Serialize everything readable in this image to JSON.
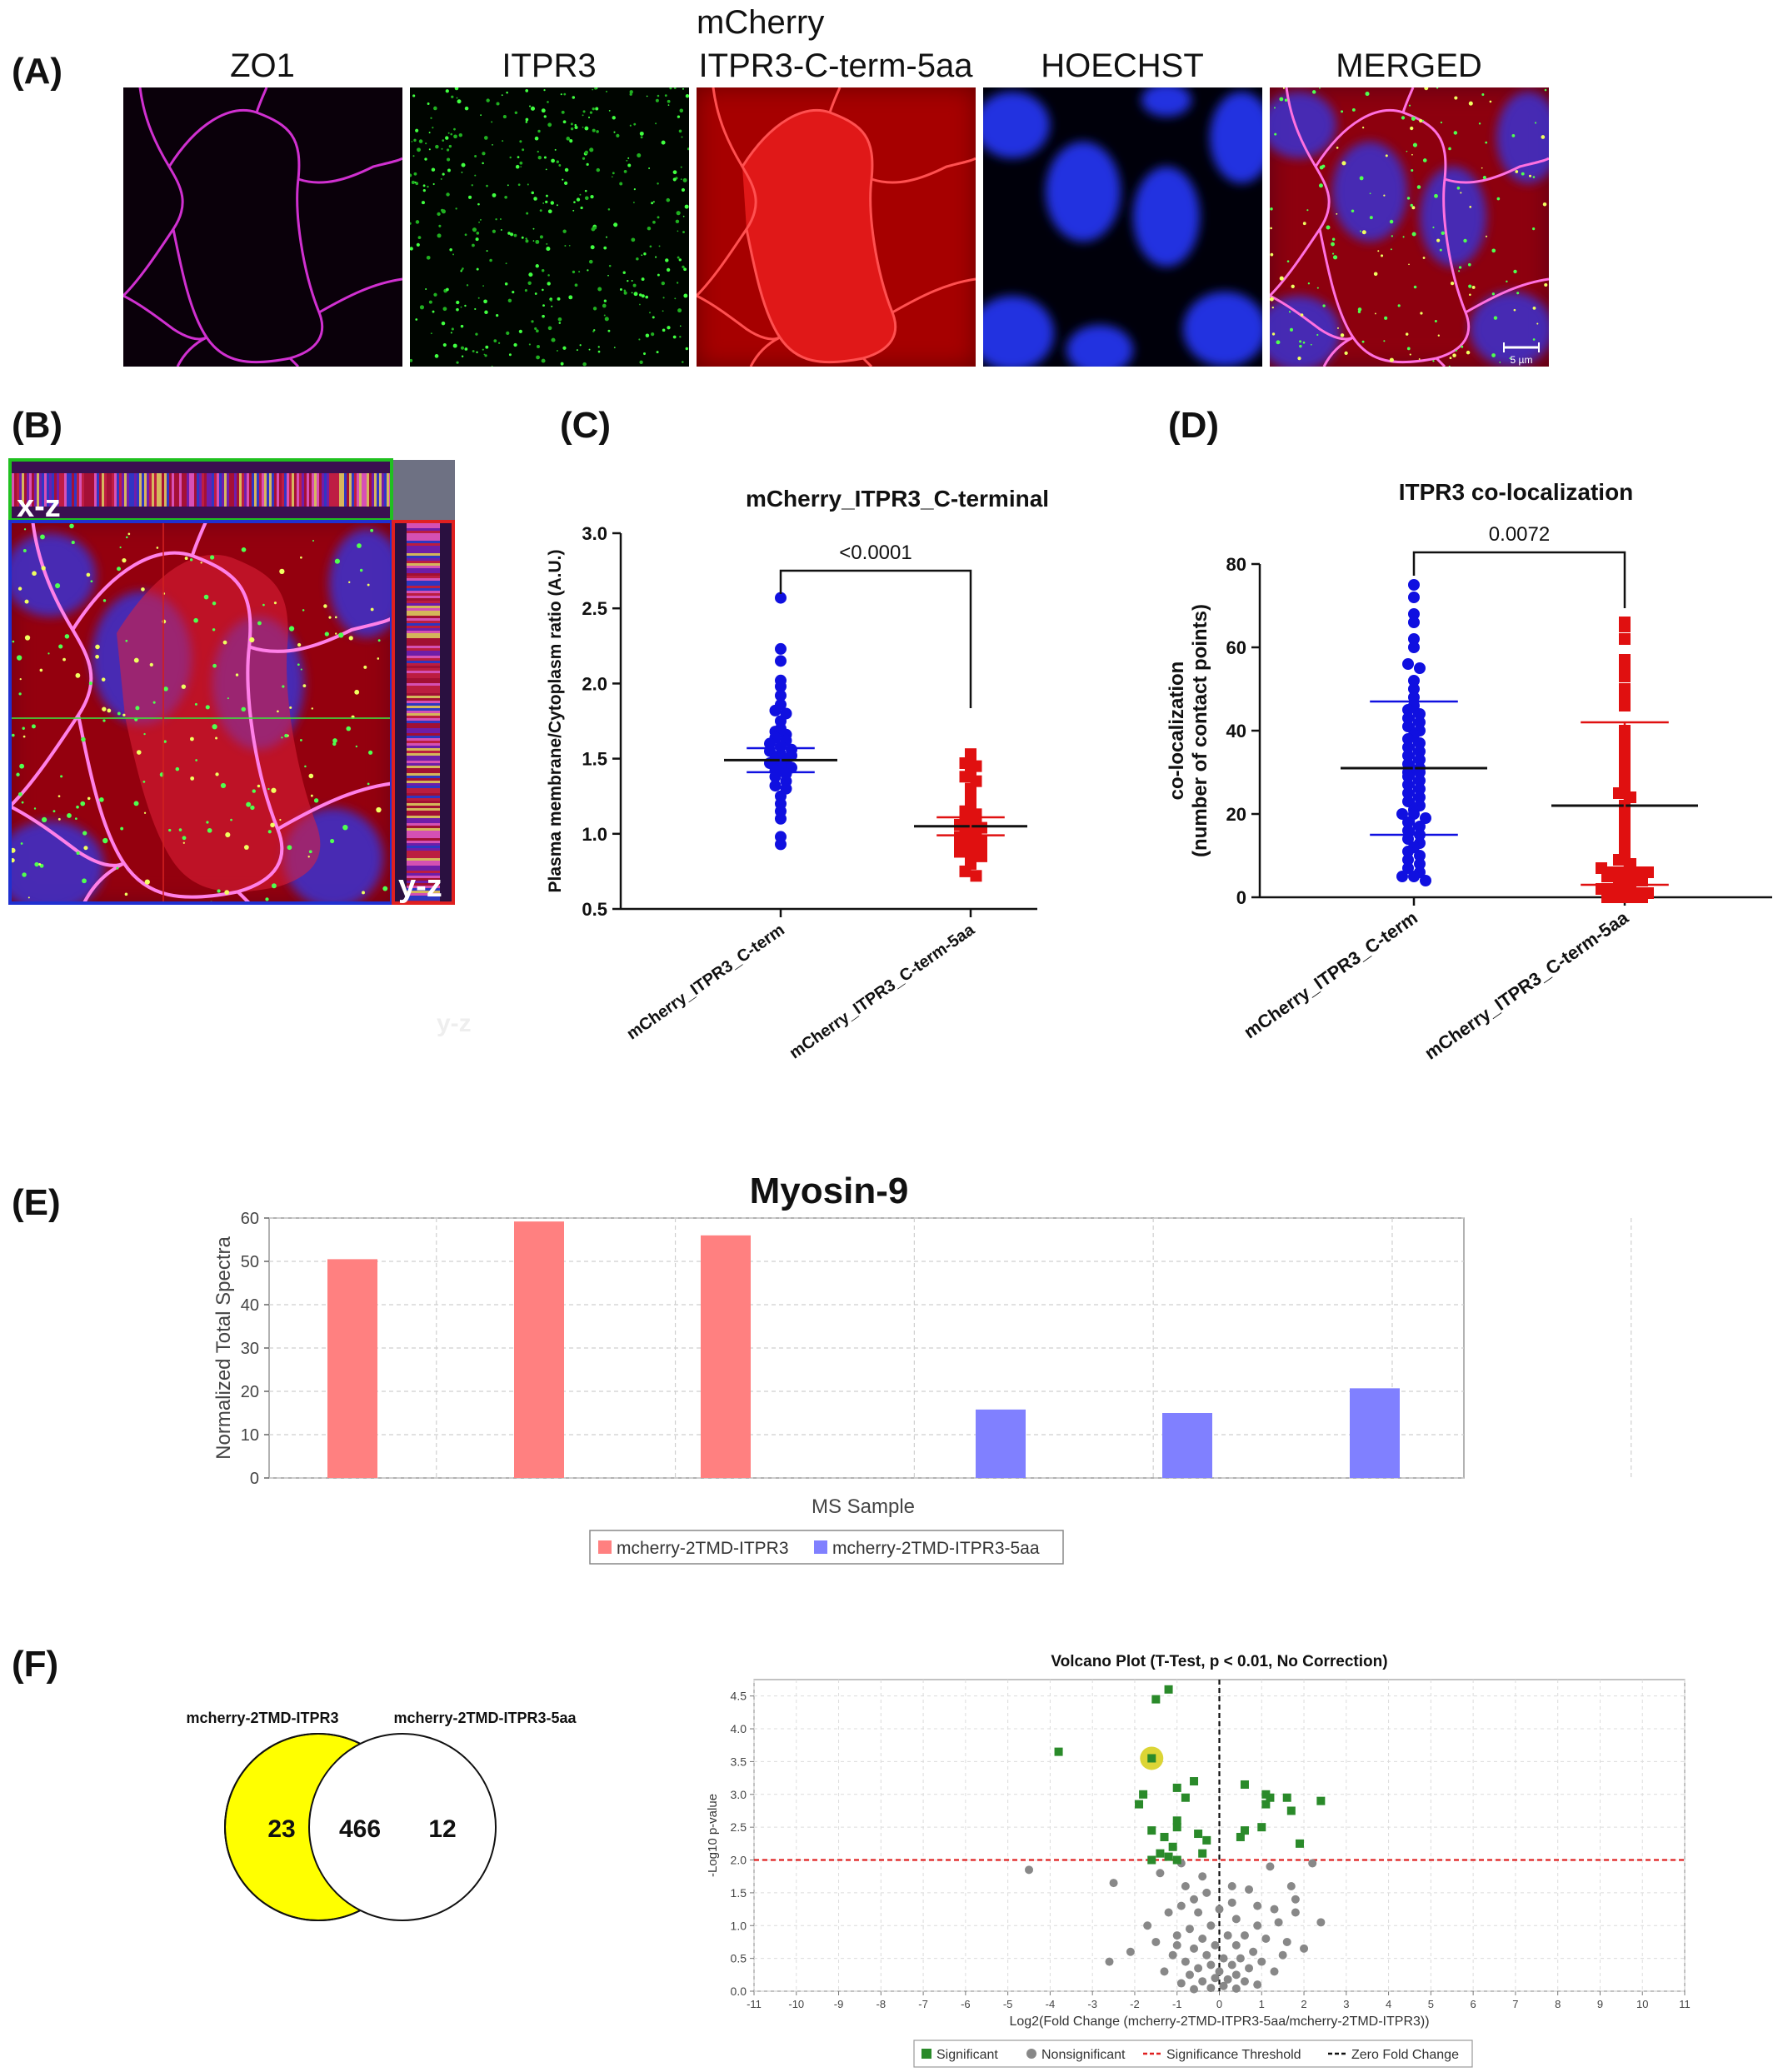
{
  "panel_letters": [
    "(A)",
    "(B)",
    "(C)",
    "(D)",
    "(E)",
    "(F)"
  ],
  "panel_a": {
    "channels": [
      {
        "label_line1": "",
        "label_line2": "ZO1",
        "color": "#c020c0",
        "icon": "zo1-junction-image"
      },
      {
        "label_line1": "",
        "label_line2": "ITPR3",
        "color": "#20d020",
        "icon": "itpr3-puncta-image"
      },
      {
        "label_line1": "mCherry",
        "label_line2": "ITPR3-C-term-5aa",
        "color": "#e01010",
        "icon": "mcherry-image"
      },
      {
        "label_line1": "",
        "label_line2": "HOECHST",
        "color": "#1020e0",
        "icon": "nuclei-image"
      },
      {
        "label_line1": "",
        "label_line2": "MERGED",
        "color": "#c02060",
        "icon": "merged-image"
      }
    ],
    "scale_bar": "5 µm"
  },
  "panel_b": {
    "xz_label": "x-z",
    "yz_label": "y-z",
    "ghost_label": "y-z",
    "xz_border_color": "#20c020",
    "yz_border_color": "#e02020",
    "main_border_color": "#2030d0"
  },
  "chart_data": [
    {
      "id": "C",
      "type": "scatter",
      "title": "mCherry_ITPR3_C-terminal",
      "ylabel": "Plasma membrane/Cytoplasm ratio (A.U.)",
      "xlabel": "",
      "ylim": [
        0.5,
        3.0
      ],
      "yticks": [
        "0.5",
        "1.0",
        "1.5",
        "2.0",
        "2.5",
        "3.0"
      ],
      "categories": [
        "mCherry_ITPR3_C-term",
        "mCherry_ITPR3_C-term-5aa"
      ],
      "significance": "<0.0001",
      "series": [
        {
          "category": "mCherry_ITPR3_C-term",
          "color": "#1010e0",
          "marker": "circle",
          "mean": 1.49,
          "sd_low": 1.41,
          "sd_high": 1.57,
          "values": [
            2.57,
            2.23,
            2.15,
            2.02,
            1.98,
            1.92,
            1.86,
            1.82,
            1.8,
            1.75,
            1.7,
            1.68,
            1.66,
            1.64,
            1.62,
            1.6,
            1.58,
            1.56,
            1.55,
            1.53,
            1.52,
            1.5,
            1.48,
            1.47,
            1.45,
            1.44,
            1.42,
            1.4,
            1.38,
            1.35,
            1.32,
            1.3,
            1.25,
            1.2,
            1.15,
            1.1,
            0.98,
            0.93
          ]
        },
        {
          "category": "mCherry_ITPR3_C-term-5aa",
          "color": "#e01010",
          "marker": "square",
          "mean": 1.05,
          "sd_low": 0.99,
          "sd_high": 1.11,
          "values": [
            1.53,
            1.5,
            1.47,
            1.45,
            1.42,
            1.38,
            1.35,
            1.3,
            1.25,
            1.22,
            1.18,
            1.15,
            1.13,
            1.1,
            1.08,
            1.06,
            1.05,
            1.04,
            1.02,
            1.0,
            0.98,
            0.97,
            0.95,
            0.93,
            0.92,
            0.9,
            0.88,
            0.86,
            0.85,
            0.8,
            0.75,
            0.72
          ]
        }
      ]
    },
    {
      "id": "D",
      "type": "scatter",
      "title": "ITPR3 co-localization",
      "ylabel_line1": "co-localization",
      "ylabel_line2": "(number of contact points)",
      "xlabel": "",
      "ylim": [
        0,
        80
      ],
      "yticks": [
        "0",
        "20",
        "40",
        "60",
        "80"
      ],
      "categories": [
        "mCherry_ITPR3_C-term",
        "mCherry_ITPR3_C-term-5aa"
      ],
      "significance": "0.0072",
      "series": [
        {
          "category": "mCherry_ITPR3_C-term",
          "color": "#1010e0",
          "marker": "circle",
          "mean": 31,
          "sd_low": 15,
          "sd_high": 47,
          "values": [
            75,
            72,
            68,
            66,
            62,
            60,
            56,
            55,
            52,
            50,
            48,
            46,
            45,
            44,
            43,
            42,
            41,
            40,
            39,
            38,
            37,
            36,
            35,
            34,
            33,
            32,
            31,
            30,
            30,
            29,
            28,
            27,
            26,
            25,
            24,
            23,
            22,
            21,
            20,
            20,
            19,
            18,
            17,
            16,
            15,
            14,
            13,
            12,
            11,
            10,
            9,
            8,
            7,
            6,
            5,
            5,
            4
          ]
        },
        {
          "category": "mCherry_ITPR3_C-term-5aa",
          "color": "#e01010",
          "marker": "square",
          "mean": 22,
          "sd_low": 3,
          "sd_high": 42,
          "values": [
            66,
            65,
            62,
            57,
            55,
            53,
            50,
            48,
            46,
            40,
            38,
            36,
            34,
            32,
            30,
            28,
            26,
            25,
            24,
            22,
            20,
            18,
            16,
            14,
            12,
            10,
            9,
            8,
            7,
            6,
            6,
            6,
            6,
            5,
            5,
            4,
            4,
            3,
            3,
            2,
            2,
            1,
            1,
            1,
            0,
            0,
            0,
            0
          ]
        }
      ]
    },
    {
      "id": "E",
      "type": "bar",
      "title": "Myosin-9",
      "xlabel": "MS Sample",
      "ylabel": "Normalized Total Spectra",
      "ylim": [
        0,
        60
      ],
      "yticks": [
        "0",
        "10",
        "20",
        "30",
        "40",
        "50",
        "60"
      ],
      "values": [
        50.5,
        59.2,
        56.0,
        15.8,
        15.0,
        20.7
      ],
      "colors": [
        "#ff8080",
        "#ff8080",
        "#ff8080",
        "#8080ff",
        "#8080ff",
        "#8080ff"
      ],
      "legend": [
        {
          "name": "mcherry-2TMD-ITPR3",
          "color": "#ff8080"
        },
        {
          "name": "mcherry-2TMD-ITPR3-5aa",
          "color": "#8080ff"
        }
      ],
      "legend_position": "bottom-center",
      "grid": true
    },
    {
      "id": "F-volcano",
      "type": "scatter",
      "title": "Volcano Plot (T-Test, p < 0.01, No Correction)",
      "xlabel": "Log2(Fold Change (mcherry-2TMD-ITPR3-5aa/mcherry-2TMD-ITPR3))",
      "ylabel": "-Log10 p-value",
      "xlim": [
        -11,
        11
      ],
      "ylim": [
        0,
        4.75
      ],
      "xticks": [
        "-11",
        "-10",
        "-9",
        "-8",
        "-7",
        "-6",
        "-5",
        "-4",
        "-3",
        "-2",
        "-1",
        "0",
        "1",
        "2",
        "3",
        "4",
        "5",
        "6",
        "7",
        "8",
        "9",
        "10",
        "11"
      ],
      "yticks": [
        "0.0",
        "0.5",
        "1.0",
        "1.5",
        "2.0",
        "2.5",
        "3.0",
        "3.5",
        "4.0",
        "4.5"
      ],
      "threshold_y": 2.0,
      "highlight": {
        "x": -1.6,
        "y": 3.55,
        "color": "#d8d020"
      },
      "legend": [
        {
          "name": "Significant",
          "color": "#2a8a2a",
          "marker": "square"
        },
        {
          "name": "Nonsignificant",
          "color": "#888888",
          "marker": "circle"
        },
        {
          "name": "Significance Threshold",
          "color": "#e02020",
          "marker": "dash"
        },
        {
          "name": "Zero Fold Change",
          "color": "#111111",
          "marker": "dash"
        }
      ],
      "significant": [
        [
          -1.2,
          4.6
        ],
        [
          -1.5,
          4.45
        ],
        [
          -3.8,
          3.65
        ],
        [
          -1.6,
          3.55
        ],
        [
          -0.6,
          3.2
        ],
        [
          -1.0,
          3.1
        ],
        [
          -1.8,
          3.0
        ],
        [
          -0.8,
          2.95
        ],
        [
          -1.9,
          2.85
        ],
        [
          -1.0,
          2.6
        ],
        [
          -1.0,
          2.5
        ],
        [
          -1.6,
          2.45
        ],
        [
          -0.5,
          2.4
        ],
        [
          -1.3,
          2.35
        ],
        [
          -1.1,
          2.2
        ],
        [
          -0.3,
          2.3
        ],
        [
          -1.4,
          2.1
        ],
        [
          -1.2,
          2.05
        ],
        [
          -0.4,
          2.1
        ],
        [
          -1.6,
          2.0
        ],
        [
          -1.0,
          2.0
        ],
        [
          0.6,
          3.15
        ],
        [
          1.1,
          3.0
        ],
        [
          1.2,
          2.95
        ],
        [
          1.1,
          2.85
        ],
        [
          1.6,
          2.95
        ],
        [
          1.7,
          2.75
        ],
        [
          2.4,
          2.9
        ],
        [
          1.0,
          2.5
        ],
        [
          0.6,
          2.45
        ],
        [
          0.5,
          2.35
        ],
        [
          1.9,
          2.25
        ]
      ],
      "nonsignificant": [
        [
          -4.5,
          1.85
        ],
        [
          -2.5,
          1.65
        ],
        [
          -2.1,
          0.6
        ],
        [
          -2.6,
          0.45
        ],
        [
          -1.4,
          1.8
        ],
        [
          -0.9,
          1.95
        ],
        [
          -0.4,
          1.75
        ],
        [
          2.2,
          1.95
        ],
        [
          2.4,
          1.05
        ],
        [
          1.2,
          1.9
        ],
        [
          1.8,
          1.4
        ],
        [
          0.7,
          1.55
        ],
        [
          1.3,
          1.25
        ],
        [
          1.8,
          1.2
        ],
        [
          0.3,
          1.6
        ],
        [
          -0.3,
          1.5
        ],
        [
          -0.6,
          1.4
        ],
        [
          -0.9,
          1.3
        ],
        [
          -1.2,
          1.2
        ],
        [
          -0.5,
          1.2
        ],
        [
          0.4,
          1.1
        ],
        [
          0.9,
          1.0
        ],
        [
          1.4,
          1.05
        ],
        [
          -0.2,
          1.0
        ],
        [
          -0.7,
          0.95
        ],
        [
          -1.0,
          0.85
        ],
        [
          0.6,
          0.85
        ],
        [
          1.1,
          0.8
        ],
        [
          1.6,
          0.75
        ],
        [
          -0.4,
          0.8
        ],
        [
          0.2,
          0.85
        ],
        [
          -0.1,
          0.7
        ],
        [
          0.4,
          0.7
        ],
        [
          -0.6,
          0.65
        ],
        [
          0.8,
          0.6
        ],
        [
          -1.1,
          0.55
        ],
        [
          -0.3,
          0.55
        ],
        [
          0.1,
          0.5
        ],
        [
          0.5,
          0.5
        ],
        [
          -0.8,
          0.45
        ],
        [
          1.0,
          0.45
        ],
        [
          -0.2,
          0.4
        ],
        [
          0.3,
          0.4
        ],
        [
          -0.5,
          0.35
        ],
        [
          0.7,
          0.35
        ],
        [
          -1.3,
          0.3
        ],
        [
          0.0,
          0.3
        ],
        [
          0.4,
          0.25
        ],
        [
          -0.7,
          0.25
        ],
        [
          1.3,
          0.3
        ],
        [
          -0.1,
          0.2
        ],
        [
          0.2,
          0.18
        ],
        [
          -0.4,
          0.15
        ],
        [
          0.6,
          0.15
        ],
        [
          -0.9,
          0.12
        ],
        [
          0.9,
          0.1
        ],
        [
          0.1,
          0.08
        ],
        [
          -0.2,
          0.05
        ],
        [
          0.4,
          0.04
        ],
        [
          -0.6,
          0.03
        ],
        [
          1.5,
          0.55
        ],
        [
          -1.5,
          0.75
        ],
        [
          2.0,
          0.65
        ],
        [
          -1.7,
          1.0
        ],
        [
          1.7,
          1.6
        ],
        [
          -0.8,
          1.6
        ],
        [
          0.0,
          1.25
        ],
        [
          0.3,
          1.35
        ],
        [
          -1.0,
          0.7
        ],
        [
          0.9,
          1.3
        ]
      ]
    },
    {
      "id": "F-venn",
      "type": "venn",
      "sets": [
        {
          "name": "mcherry-2TMD-ITPR3",
          "unique": "23",
          "color": "#ffff00"
        },
        {
          "name": "mcherry-2TMD-ITPR3-5aa",
          "unique": "12",
          "color": "#ffffff"
        }
      ],
      "intersection": "466"
    }
  ]
}
